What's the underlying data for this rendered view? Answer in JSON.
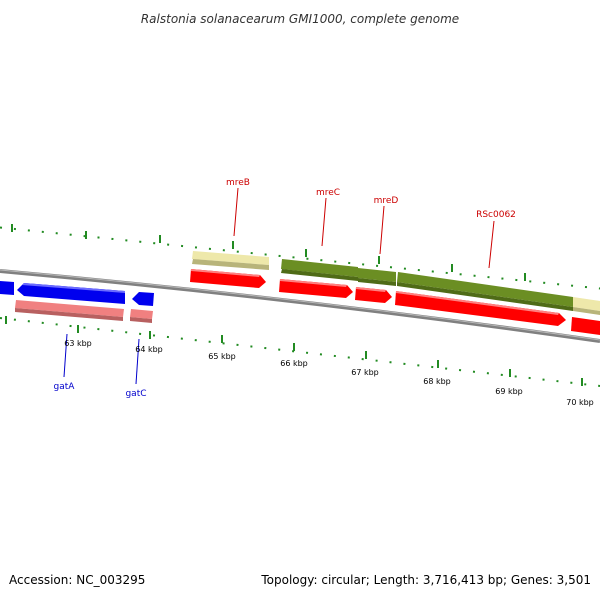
{
  "title": "Ralstonia solanacearum GMI1000, complete genome",
  "footer": {
    "accession": "Accession: NC_003295",
    "topology": "Topology: circular; Length: 3,716,413 bp; Genes: 3,501"
  },
  "scale_labels": {
    "k63": "63 kbp",
    "k64": "64 kbp",
    "k65": "65 kbp",
    "k66": "66 kbp",
    "k67": "67 kbp",
    "k68": "68 kbp",
    "k69": "69 kbp",
    "k70": "70 kbp"
  },
  "genes": {
    "mreB": "mreB",
    "mreC": "mreC",
    "mreD": "mreD",
    "RSc0062": "RSc0062",
    "gatA": "gatA",
    "gatC": "gatC"
  },
  "colors": {
    "forward_cds": "#ff0000",
    "reverse_cds": "#0000ee",
    "reverse_feature": "#f08080",
    "forward_feature_green": "#6b8e23",
    "forward_feature_khaki": "#eee8aa",
    "tick": "#228b22",
    "backbone": "#808080"
  }
}
